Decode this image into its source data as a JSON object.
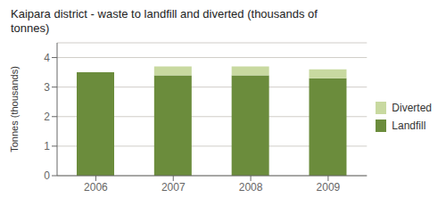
{
  "chart_data": {
    "type": "bar",
    "stacked": true,
    "title": "Kaipara district - waste to landfill and diverted (thousands of\ntonnes)",
    "ylabel": "Tonnes (thousands)",
    "categories": [
      "2006",
      "2007",
      "2008",
      "2009"
    ],
    "series": [
      {
        "name": "Landfill",
        "color": "#6b8c3c",
        "values": [
          3.5,
          3.4,
          3.4,
          3.3
        ]
      },
      {
        "name": "Diverted",
        "color": "#c8d9a0",
        "values": [
          0.0,
          0.3,
          0.3,
          0.3
        ]
      }
    ],
    "ylim": [
      0,
      4.5
    ],
    "yticks": [
      0,
      1,
      2,
      3,
      4
    ],
    "grid": true,
    "legend": "right"
  }
}
